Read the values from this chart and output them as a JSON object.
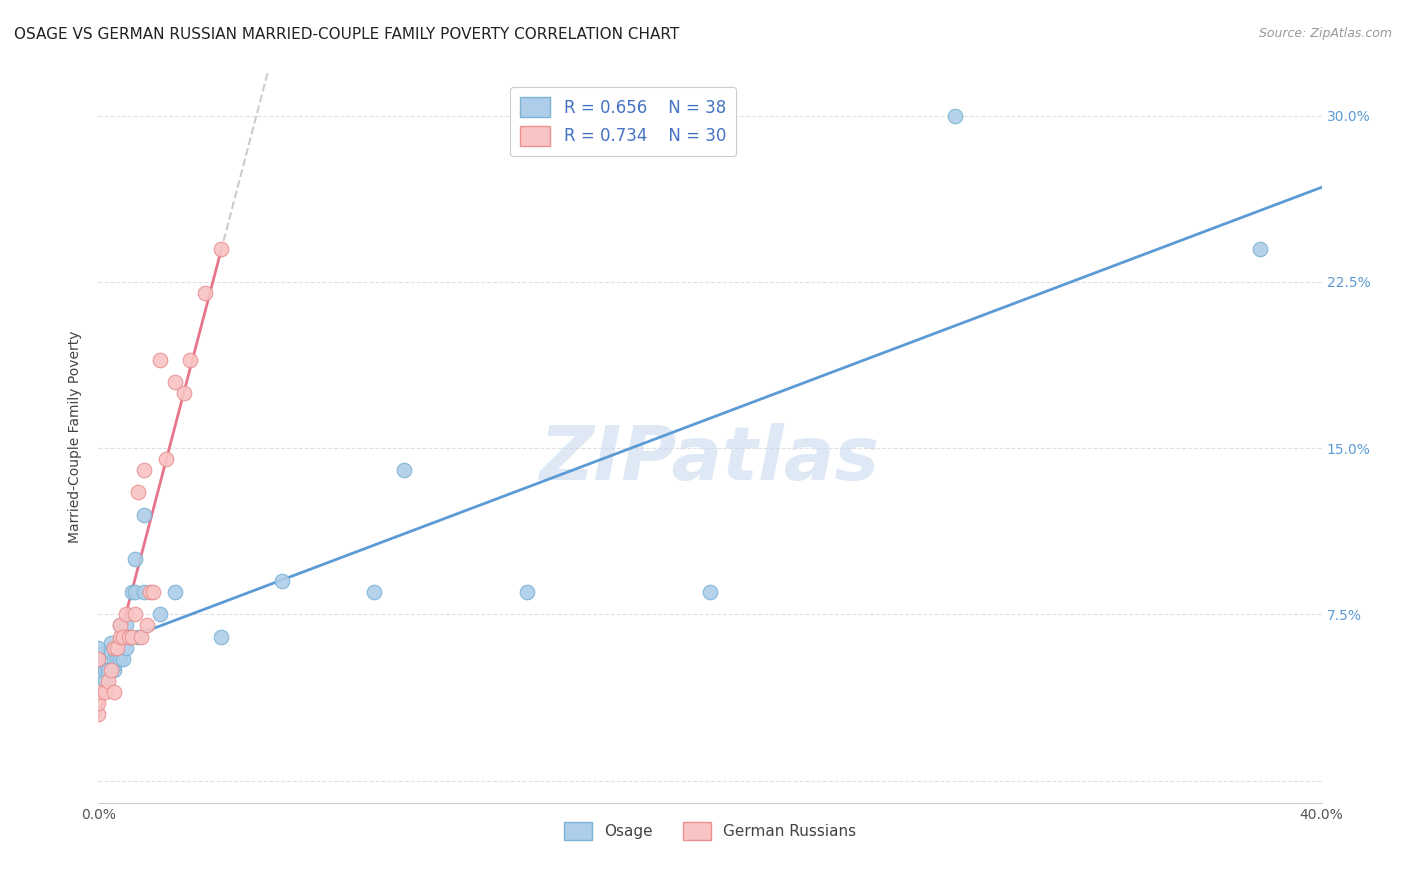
{
  "title": "OSAGE VS GERMAN RUSSIAN MARRIED-COUPLE FAMILY POVERTY CORRELATION CHART",
  "source": "Source: ZipAtlas.com",
  "ylabel": "Married-Couple Family Poverty",
  "watermark": "ZIPatlas",
  "xlim": [
    0.0,
    0.4
  ],
  "ylim": [
    -0.01,
    0.32
  ],
  "plot_ylim": [
    0.0,
    0.32
  ],
  "xticks": [
    0.0,
    0.05,
    0.1,
    0.15,
    0.2,
    0.25,
    0.3,
    0.35,
    0.4
  ],
  "xticklabels": [
    "0.0%",
    "",
    "",
    "",
    "",
    "",
    "",
    "",
    "40.0%"
  ],
  "yticks": [
    0.0,
    0.075,
    0.15,
    0.225,
    0.3
  ],
  "yticklabels": [
    "",
    "7.5%",
    "15.0%",
    "22.5%",
    "30.0%"
  ],
  "legend_r1": "R = 0.656",
  "legend_n1": "N = 38",
  "legend_r2": "R = 0.734",
  "legend_n2": "N = 30",
  "osage_fill_color": "#aecde8",
  "osage_edge_color": "#7ab3d4",
  "german_fill_color": "#f9c4c4",
  "german_edge_color": "#e89090",
  "trend_color_osage": "#5b9bd5",
  "trend_color_german": "#e8748a",
  "dashed_color": "#cccccc",
  "background_color": "#ffffff",
  "grid_color": "#dddddd",
  "legend_text_color": "#4472c4",
  "osage_data_x": [
    0.0,
    0.0,
    0.0,
    0.0,
    0.0,
    0.002,
    0.002,
    0.003,
    0.004,
    0.004,
    0.005,
    0.005,
    0.005,
    0.006,
    0.006,
    0.007,
    0.007,
    0.008,
    0.008,
    0.009,
    0.009,
    0.01,
    0.011,
    0.012,
    0.012,
    0.013,
    0.015,
    0.015,
    0.02,
    0.025,
    0.04,
    0.06,
    0.09,
    0.1,
    0.14,
    0.2,
    0.28,
    0.38
  ],
  "osage_data_y": [
    0.05,
    0.052,
    0.055,
    0.057,
    0.06,
    0.045,
    0.05,
    0.05,
    0.058,
    0.062,
    0.05,
    0.052,
    0.055,
    0.055,
    0.06,
    0.055,
    0.07,
    0.055,
    0.065,
    0.06,
    0.07,
    0.065,
    0.085,
    0.085,
    0.1,
    0.065,
    0.085,
    0.12,
    0.075,
    0.085,
    0.065,
    0.09,
    0.085,
    0.14,
    0.085,
    0.085,
    0.3,
    0.24
  ],
  "german_data_x": [
    0.0,
    0.0,
    0.0,
    0.0,
    0.002,
    0.003,
    0.004,
    0.005,
    0.005,
    0.006,
    0.007,
    0.007,
    0.008,
    0.009,
    0.01,
    0.011,
    0.012,
    0.013,
    0.014,
    0.015,
    0.016,
    0.017,
    0.018,
    0.02,
    0.022,
    0.025,
    0.028,
    0.03,
    0.035,
    0.04
  ],
  "german_data_y": [
    0.03,
    0.035,
    0.04,
    0.055,
    0.04,
    0.045,
    0.05,
    0.04,
    0.06,
    0.06,
    0.065,
    0.07,
    0.065,
    0.075,
    0.065,
    0.065,
    0.075,
    0.13,
    0.065,
    0.14,
    0.07,
    0.085,
    0.085,
    0.19,
    0.145,
    0.18,
    0.175,
    0.19,
    0.22,
    0.24
  ]
}
